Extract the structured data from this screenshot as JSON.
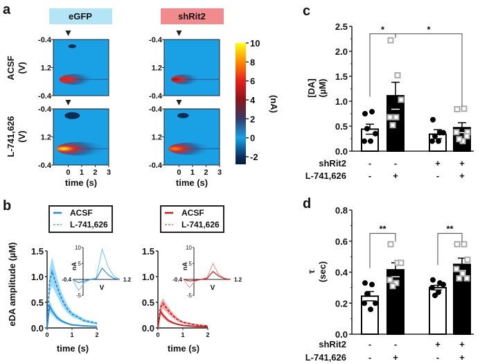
{
  "panels": {
    "a": "a",
    "b": "b",
    "c": "c",
    "d": "d"
  },
  "colors": {
    "egfp_header": "#b3e5f7",
    "shrit2_header": "#f28b8e",
    "egfp_line": "#1e88e5",
    "egfp_light": "#6ec3f5",
    "shrit2_line": "#d0161b",
    "shrit2_light": "#f08a8a"
  },
  "chart_data": [
    {
      "type": "heatmap",
      "panel": "a",
      "groups": [
        "eGFP",
        "shRit2"
      ],
      "rows": [
        {
          "label": "ACSF",
          "unit": "(V)"
        },
        {
          "label": "L-741,626",
          "unit": "(V)"
        }
      ],
      "ytick_labels": [
        "-0.4",
        "1.2",
        "-0.4"
      ],
      "xticks": [
        0,
        1,
        2,
        3
      ],
      "xlabel": "time (s)",
      "xlim": [
        -1.1,
        3.0
      ],
      "stim_marker": "arrowhead-at-0s",
      "peak_current_nA": {
        "eGFP_ACSF": 6,
        "shRit2_ACSF": 4.5,
        "eGFP_L-741,626": 10,
        "shRit2_L-741,626": 8
      },
      "colorbar": {
        "label": "(nA)",
        "ticks": [
          10,
          8,
          6,
          4,
          2,
          0,
          -2
        ],
        "range": [
          -2.8,
          10
        ]
      }
    },
    {
      "type": "line",
      "panel": "b-left",
      "group": "eGFP",
      "legend": [
        "ACSF",
        "L-741,626"
      ],
      "xlabel": "time (s)",
      "ylabel": "eDA amplitude (µM)",
      "xlim": [
        0,
        2
      ],
      "ylim": [
        0,
        1.5
      ],
      "xticks": [
        0,
        1,
        2
      ],
      "yticks": [
        "0.0",
        "0.5",
        "1.0",
        "1.5"
      ],
      "x": [
        0,
        0.1,
        0.2,
        0.4,
        0.6,
        0.8,
        1.0,
        1.5,
        2.0
      ],
      "series": [
        {
          "name": "ACSF",
          "style": "solid",
          "values": [
            0,
            0.43,
            0.33,
            0.2,
            0.13,
            0.09,
            0.06,
            0.04,
            0.03
          ],
          "sem": [
            0,
            0.11,
            0.08,
            0.05,
            0.03,
            0.02,
            0.015,
            0.01,
            0.01
          ]
        },
        {
          "name": "L-741,626",
          "style": "dashed",
          "values": [
            0,
            0.9,
            1.1,
            0.8,
            0.55,
            0.38,
            0.27,
            0.14,
            0.09
          ],
          "sem": [
            0,
            0.25,
            0.28,
            0.18,
            0.12,
            0.08,
            0.05,
            0.03,
            0.02
          ]
        }
      ],
      "inset": {
        "xlabel": "V",
        "ylabel": "nA",
        "ytick_labels": [
          "10",
          "5",
          "-5"
        ],
        "xtick_labels": [
          "-0.4",
          "1.2"
        ],
        "x": [
          -0.4,
          -0.2,
          0,
          0.2,
          0.4,
          0.6,
          0.8,
          1.0,
          1.2
        ],
        "ACSF": [
          0,
          -1,
          -0.5,
          0,
          0.2,
          3.5,
          1.5,
          0.3,
          0
        ],
        "L-741,626": [
          0,
          -3.5,
          -1,
          0,
          0.5,
          9.5,
          4,
          1,
          0
        ]
      }
    },
    {
      "type": "line",
      "panel": "b-right",
      "group": "shRit2",
      "legend": [
        "ACSF",
        "L-741,626"
      ],
      "xlabel": "time (s)",
      "xlim": [
        0,
        2
      ],
      "ylim": [
        0,
        1.5
      ],
      "xticks": [
        0,
        1,
        2
      ],
      "yticks": [
        "0.0",
        "0.5",
        "1.0",
        "1.5"
      ],
      "x": [
        0,
        0.1,
        0.2,
        0.4,
        0.6,
        0.8,
        1.0,
        1.5,
        2.0
      ],
      "series": [
        {
          "name": "ACSF",
          "style": "solid",
          "values": [
            0,
            0.33,
            0.25,
            0.15,
            0.1,
            0.07,
            0.05,
            0.03,
            0.02
          ],
          "sem": [
            0,
            0.06,
            0.05,
            0.03,
            0.02,
            0.015,
            0.01,
            0.01,
            0.01
          ]
        },
        {
          "name": "L-741,626",
          "style": "dashed",
          "values": [
            0,
            0.4,
            0.48,
            0.35,
            0.24,
            0.16,
            0.11,
            0.06,
            0.04
          ],
          "sem": [
            0,
            0.09,
            0.1,
            0.07,
            0.05,
            0.03,
            0.02,
            0.015,
            0.01
          ]
        }
      ],
      "inset": {
        "xlabel": "V",
        "ylabel": "nA",
        "ytick_labels": [
          "10",
          "5",
          "-5"
        ],
        "xtick_labels": [
          "-0.4",
          "1.2"
        ],
        "x": [
          -0.4,
          -0.2,
          0,
          0.2,
          0.4,
          0.6,
          0.8,
          1.0,
          1.2
        ],
        "ACSF": [
          0,
          -0.5,
          -0.3,
          0,
          0.3,
          2.5,
          1,
          0.2,
          0
        ],
        "L-741,626": [
          0,
          -2.5,
          -0.5,
          0,
          0.6,
          5,
          1.5,
          0.3,
          0
        ]
      }
    },
    {
      "type": "bar",
      "panel": "c",
      "ylabel": [
        "[DA]",
        "(µM)"
      ],
      "ylim": [
        0,
        2.5
      ],
      "yticks": [
        "0.0",
        "0.5",
        "1.0",
        "1.5",
        "2.0",
        "2.5"
      ],
      "factor_rows": [
        {
          "label": "shRit2",
          "values": [
            "-",
            "-",
            "+",
            "+"
          ]
        },
        {
          "label": "L-741,626",
          "values": [
            "-",
            "+",
            "-",
            "+"
          ]
        }
      ],
      "bars": [
        {
          "mean": 0.44,
          "sem": 0.1,
          "fill": "white",
          "points": [
            0.75,
            0.79,
            0.35,
            0.2,
            0.2,
            0.45
          ]
        },
        {
          "mean": 1.11,
          "sem": 0.27,
          "fill": "black",
          "points": [
            2.22,
            1.52,
            1.03,
            0.68,
            0.68,
            0.52
          ]
        },
        {
          "mean": 0.34,
          "sem": 0.09,
          "fill": "white",
          "points": [
            0.63,
            0.37,
            0.37,
            0.2,
            0.2,
            0.3
          ]
        },
        {
          "mean": 0.47,
          "sem": 0.1,
          "fill": "black",
          "points": [
            0.84,
            0.85,
            0.38,
            0.38,
            0.2,
            0.24,
            0.3
          ]
        }
      ],
      "significance": [
        {
          "from": 0,
          "to": 1,
          "label": "*",
          "level": 2.35
        },
        {
          "from": 1,
          "to": 3,
          "label": "*",
          "level": 2.35
        }
      ]
    },
    {
      "type": "bar",
      "panel": "d",
      "ylabel": [
        "τ",
        "(sec)"
      ],
      "ylim": [
        0,
        0.8
      ],
      "yticks": [
        "0.0",
        "0.2",
        "0.4",
        "0.6",
        "0.8"
      ],
      "factor_rows": [
        {
          "label": "shRit2",
          "values": [
            "-",
            "-",
            "+",
            "+"
          ]
        },
        {
          "label": "L-741,626",
          "values": [
            "-",
            "+",
            "-",
            "+"
          ]
        }
      ],
      "bars": [
        {
          "mean": 0.245,
          "sem": 0.03,
          "fill": "white",
          "points": [
            0.33,
            0.32,
            0.2,
            0.2,
            0.16,
            0.26
          ]
        },
        {
          "mean": 0.415,
          "sem": 0.045,
          "fill": "black",
          "points": [
            0.58,
            0.46,
            0.46,
            0.35,
            0.33,
            0.31
          ]
        },
        {
          "mean": 0.3,
          "sem": 0.015,
          "fill": "white",
          "points": [
            0.35,
            0.33,
            0.32,
            0.3,
            0.27,
            0.25
          ]
        },
        {
          "mean": 0.45,
          "sem": 0.04,
          "fill": "black",
          "points": [
            0.58,
            0.58,
            0.48,
            0.42,
            0.39,
            0.36,
            0.36
          ]
        }
      ],
      "significance": [
        {
          "from": 0,
          "to": 1,
          "label": "**",
          "level": 0.65
        },
        {
          "from": 2,
          "to": 3,
          "label": "**",
          "level": 0.65
        }
      ]
    }
  ]
}
